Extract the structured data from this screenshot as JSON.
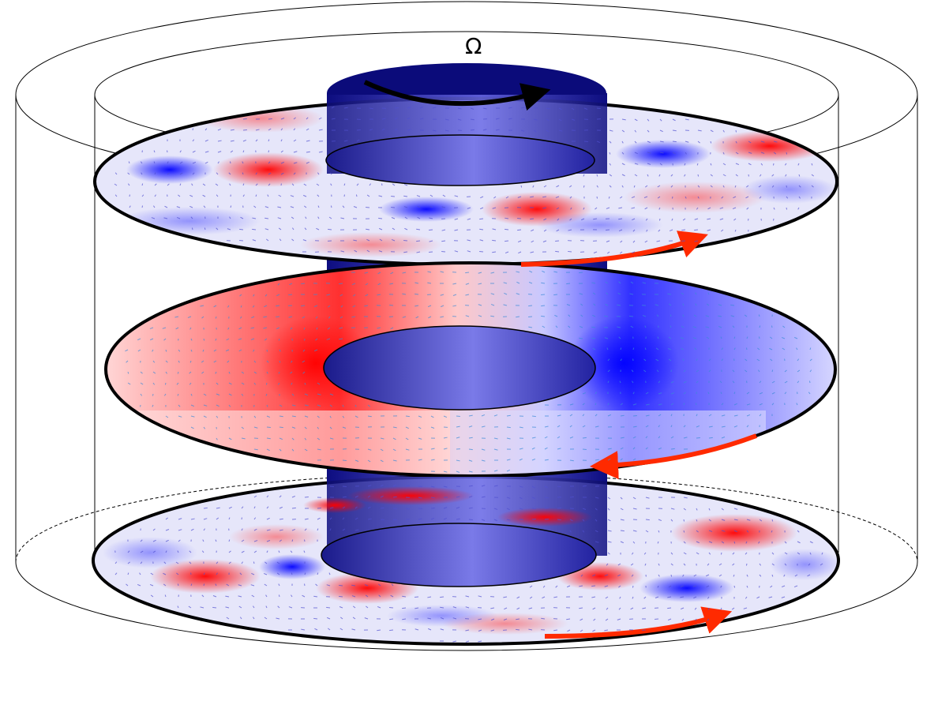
{
  "diagram": {
    "rotation_symbol": "Ω",
    "colors": {
      "positive": "#ff1a1a",
      "negative": "#1a1aff",
      "neutral": "#ffffff",
      "inner_cylinder": "#1b1b9e",
      "flow_arrow": "#ff2a00",
      "rotation_arrow": "#000000",
      "outline": "#000000"
    },
    "slices": [
      {
        "name": "top-slice",
        "flow_direction": "clockwise"
      },
      {
        "name": "middle-slice",
        "flow_direction": "counterclockwise"
      },
      {
        "name": "bottom-slice",
        "flow_direction": "clockwise"
      }
    ]
  }
}
